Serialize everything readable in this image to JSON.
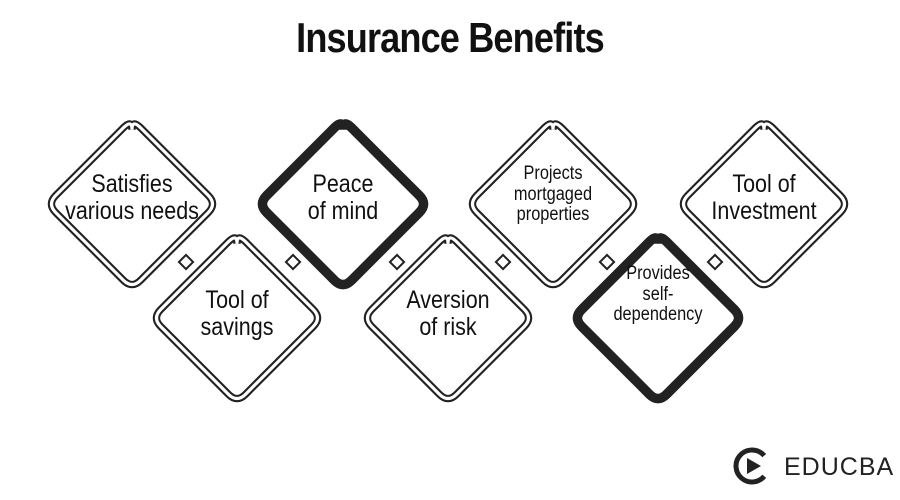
{
  "title": "Insurance Benefits",
  "benefits": [
    {
      "lines": [
        "Satisfies",
        "various needs"
      ]
    },
    {
      "lines": [
        "Peace",
        "of mind"
      ]
    },
    {
      "lines": [
        "Projects",
        "mortgaged",
        "properties"
      ]
    },
    {
      "lines": [
        "Tool of",
        "Investment"
      ]
    },
    {
      "lines": [
        "Tool of",
        "savings"
      ]
    },
    {
      "lines": [
        "Aversion",
        "of risk"
      ]
    },
    {
      "lines": [
        "Provides",
        "self-",
        "dependency"
      ]
    }
  ],
  "logo": {
    "text": "EDUCBA"
  },
  "colors": {
    "outline": "#222222",
    "text": "#111111",
    "background": "#ffffff"
  }
}
